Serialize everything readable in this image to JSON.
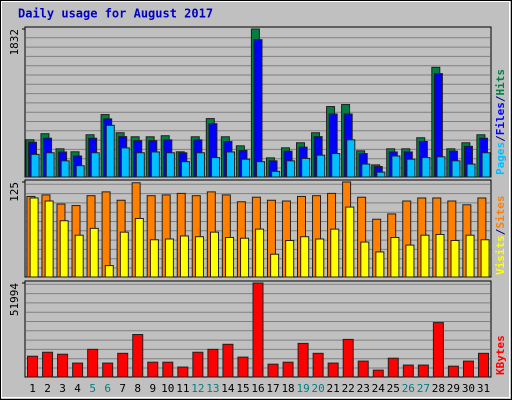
{
  "chart_data": {
    "type": "bar",
    "title": "Daily usage for August 2017",
    "categories": [
      1,
      2,
      3,
      4,
      5,
      6,
      7,
      8,
      9,
      10,
      11,
      12,
      13,
      14,
      15,
      16,
      17,
      18,
      19,
      20,
      21,
      22,
      23,
      24,
      25,
      26,
      27,
      28,
      29,
      30,
      31
    ],
    "weekend": [
      false,
      false,
      false,
      false,
      true,
      true,
      false,
      false,
      false,
      false,
      false,
      true,
      true,
      false,
      false,
      false,
      false,
      false,
      true,
      true,
      false,
      false,
      false,
      false,
      false,
      true,
      true,
      false,
      false,
      false,
      false
    ],
    "weekend_color": "#008080",
    "category_color": "#000000",
    "legend_separator": "/",
    "panels": [
      {
        "ylim": [
          0,
          1832
        ],
        "yticks": [
          1832
        ],
        "series": [
          {
            "name": "Hits",
            "color": "#008040",
            "values": [
              461,
              536,
              349,
              312,
              523,
              773,
              548,
              498,
              498,
              511,
              312,
              498,
              723,
              498,
              386,
              1832,
              237,
              361,
              424,
              548,
              872,
              897,
              324,
              150,
              349,
              349,
              486,
              1358,
              349,
              424,
              523
            ]
          },
          {
            "name": "Files",
            "color": "#0000ff",
            "values": [
              430,
              480,
              310,
              260,
              480,
              720,
              500,
              450,
              450,
              460,
              300,
              460,
              660,
              440,
              330,
              1700,
              200,
              320,
              370,
              500,
              780,
              780,
              290,
              130,
              310,
              310,
              440,
              1280,
              320,
              380,
              480
            ]
          },
          {
            "name": "Pages",
            "color": "#00c0ff",
            "values": [
              280,
              300,
              200,
              140,
              300,
              640,
              360,
              300,
              310,
              300,
              190,
              300,
              240,
              310,
              220,
              190,
              70,
              200,
              230,
              270,
              290,
              460,
              160,
              60,
              260,
              220,
              240,
              250,
              200,
              160,
              300
            ]
          }
        ]
      },
      {
        "ylim": [
          0,
          125
        ],
        "yticks": [
          125
        ],
        "series": [
          {
            "name": "Sites",
            "color": "#ff8000",
            "values": [
              106,
              108,
              96,
              94,
              107,
              112,
              101,
              124,
              107,
              108,
              110,
              107,
              112,
              108,
              99,
              105,
              101,
              100,
              106,
              107,
              110,
              125,
              105,
              76,
              83,
              100,
              104,
              104,
              100,
              95,
              104
            ]
          },
          {
            "name": "Visits",
            "color": "#ffff00",
            "values": [
              104,
              100,
              74,
              55,
              64,
              15,
              59,
              77,
              49,
              50,
              54,
              53,
              59,
              52,
              51,
              63,
              30,
              48,
              53,
              50,
              63,
              92,
              46,
              33,
              52,
              42,
              55,
              56,
              48,
              55,
              49
            ]
          }
        ]
      },
      {
        "ylim": [
          0,
          51994
        ],
        "yticks": [
          51994
        ],
        "series": [
          {
            "name": "KBytes",
            "color": "#ff0000",
            "values": [
              11500,
              13700,
              12600,
              7700,
              15300,
              7700,
              13100,
              23500,
              8200,
              8200,
              5500,
              13700,
              15300,
              18100,
              11000,
              51994,
              7100,
              8200,
              18600,
              13100,
              7700,
              20800,
              8800,
              3800,
              10400,
              6600,
              6600,
              30100,
              6000,
              8800,
              13100
            ]
          }
        ]
      }
    ]
  }
}
